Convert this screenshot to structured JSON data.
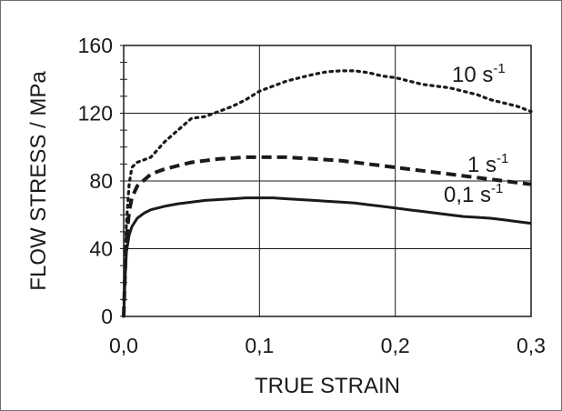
{
  "chart_data": {
    "type": "line",
    "title": "",
    "xlabel": "TRUE STRAIN",
    "ylabel": "FLOW STRESS / MPa",
    "xlim": [
      0,
      0.3
    ],
    "ylim": [
      0,
      160
    ],
    "x_ticks": [
      "0,0",
      "0,1",
      "0,2",
      "0,3"
    ],
    "y_ticks": [
      "0",
      "40",
      "80",
      "120",
      "160"
    ],
    "grid": true,
    "series": [
      {
        "name": "10 s-1",
        "label_base": "10 s",
        "label_sup": "-1",
        "style": "dotted",
        "points": [
          [
            0,
            0
          ],
          [
            0.001,
            30
          ],
          [
            0.002,
            55
          ],
          [
            0.004,
            78
          ],
          [
            0.006,
            88
          ],
          [
            0.01,
            91
          ],
          [
            0.02,
            94
          ],
          [
            0.03,
            103
          ],
          [
            0.04,
            110
          ],
          [
            0.05,
            117
          ],
          [
            0.06,
            118
          ],
          [
            0.07,
            121
          ],
          [
            0.08,
            124
          ],
          [
            0.09,
            128
          ],
          [
            0.1,
            133
          ],
          [
            0.11,
            136
          ],
          [
            0.12,
            139
          ],
          [
            0.13,
            141
          ],
          [
            0.14,
            143
          ],
          [
            0.15,
            144.5
          ],
          [
            0.16,
            145
          ],
          [
            0.17,
            145
          ],
          [
            0.18,
            144
          ],
          [
            0.19,
            142
          ],
          [
            0.2,
            141
          ],
          [
            0.21,
            139
          ],
          [
            0.22,
            137
          ],
          [
            0.23,
            136
          ],
          [
            0.24,
            135
          ],
          [
            0.25,
            133
          ],
          [
            0.26,
            131
          ],
          [
            0.27,
            128
          ],
          [
            0.28,
            126
          ],
          [
            0.29,
            124
          ],
          [
            0.3,
            121
          ]
        ]
      },
      {
        "name": "1 s-1",
        "label_base": "1 s",
        "label_sup": "-1",
        "style": "dashed",
        "points": [
          [
            0,
            0
          ],
          [
            0.001,
            25
          ],
          [
            0.002,
            45
          ],
          [
            0.004,
            62
          ],
          [
            0.006,
            70
          ],
          [
            0.01,
            77
          ],
          [
            0.02,
            84
          ],
          [
            0.03,
            87
          ],
          [
            0.04,
            89
          ],
          [
            0.05,
            91
          ],
          [
            0.06,
            92
          ],
          [
            0.07,
            93
          ],
          [
            0.08,
            93.5
          ],
          [
            0.09,
            94
          ],
          [
            0.1,
            94
          ],
          [
            0.11,
            94
          ],
          [
            0.12,
            94
          ],
          [
            0.13,
            93.5
          ],
          [
            0.14,
            93
          ],
          [
            0.15,
            92.5
          ],
          [
            0.16,
            92
          ],
          [
            0.17,
            91
          ],
          [
            0.18,
            90
          ],
          [
            0.19,
            89
          ],
          [
            0.2,
            88
          ],
          [
            0.21,
            87
          ],
          [
            0.22,
            86
          ],
          [
            0.23,
            85
          ],
          [
            0.24,
            84
          ],
          [
            0.25,
            83
          ],
          [
            0.26,
            82
          ],
          [
            0.27,
            81
          ],
          [
            0.28,
            80
          ],
          [
            0.29,
            79
          ],
          [
            0.3,
            78
          ]
        ]
      },
      {
        "name": "0,1 s-1",
        "label_base": "0,1 s",
        "label_sup": "-1",
        "style": "solid",
        "points": [
          [
            0,
            0
          ],
          [
            0.001,
            22
          ],
          [
            0.002,
            38
          ],
          [
            0.004,
            48
          ],
          [
            0.006,
            53
          ],
          [
            0.01,
            58
          ],
          [
            0.015,
            61
          ],
          [
            0.02,
            63
          ],
          [
            0.03,
            65
          ],
          [
            0.04,
            66.5
          ],
          [
            0.05,
            67.5
          ],
          [
            0.06,
            68.5
          ],
          [
            0.07,
            69
          ],
          [
            0.08,
            69.5
          ],
          [
            0.09,
            70
          ],
          [
            0.1,
            70
          ],
          [
            0.11,
            70
          ],
          [
            0.12,
            69.5
          ],
          [
            0.13,
            69
          ],
          [
            0.14,
            68.5
          ],
          [
            0.15,
            68
          ],
          [
            0.16,
            67.5
          ],
          [
            0.17,
            67
          ],
          [
            0.18,
            66
          ],
          [
            0.19,
            65
          ],
          [
            0.2,
            64
          ],
          [
            0.21,
            63
          ],
          [
            0.22,
            62
          ],
          [
            0.23,
            61
          ],
          [
            0.24,
            60
          ],
          [
            0.25,
            59
          ],
          [
            0.26,
            58.5
          ],
          [
            0.27,
            58
          ],
          [
            0.28,
            57
          ],
          [
            0.29,
            56
          ],
          [
            0.3,
            55
          ]
        ]
      }
    ]
  }
}
